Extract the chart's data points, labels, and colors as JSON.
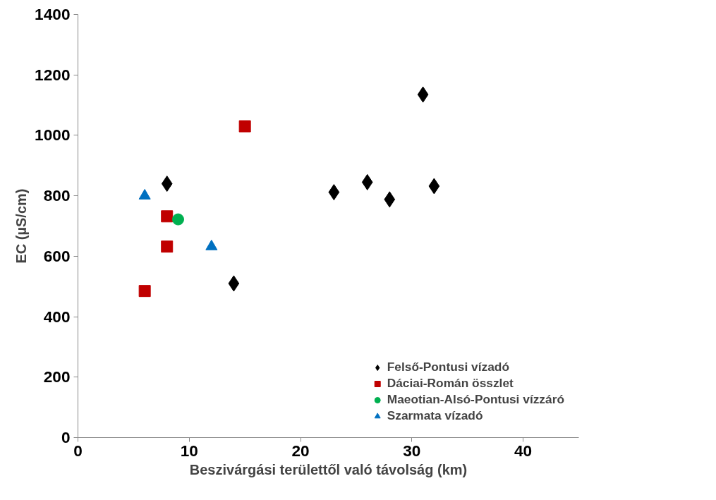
{
  "chart_data": {
    "type": "scatter",
    "xlabel": "Beszivárgási területtől való távolság (km)",
    "ylabel": "EC (µS/cm)",
    "xlim": [
      0,
      45
    ],
    "xticks": [
      0,
      10,
      20,
      30,
      40
    ],
    "ylim": [
      0,
      1400
    ],
    "yticks": [
      0,
      200,
      400,
      600,
      800,
      1000,
      1200,
      1400
    ],
    "grid": false,
    "legend": "bottom right",
    "series": [
      {
        "name": "Felső-Pontusi vízadó",
        "color": "#000000",
        "marker": "diamond",
        "x": [
          8,
          14,
          23,
          26,
          28,
          31,
          32
        ],
        "values": [
          840,
          510,
          812,
          845,
          788,
          1135,
          832
        ]
      },
      {
        "name": "Dáciai-Román összlet",
        "color": "#c00000",
        "marker": "square",
        "x": [
          6,
          8,
          8,
          15
        ],
        "values": [
          485,
          732,
          632,
          1030
        ]
      },
      {
        "name": "Maeotian-Alsó-Pontusi vízzáró",
        "color": "#00b050",
        "marker": "circle",
        "x": [
          9
        ],
        "values": [
          722
        ]
      },
      {
        "name": "Szarmata vízadó",
        "color": "#0070c0",
        "marker": "triangle",
        "x": [
          6,
          12
        ],
        "values": [
          800,
          632
        ]
      }
    ]
  }
}
